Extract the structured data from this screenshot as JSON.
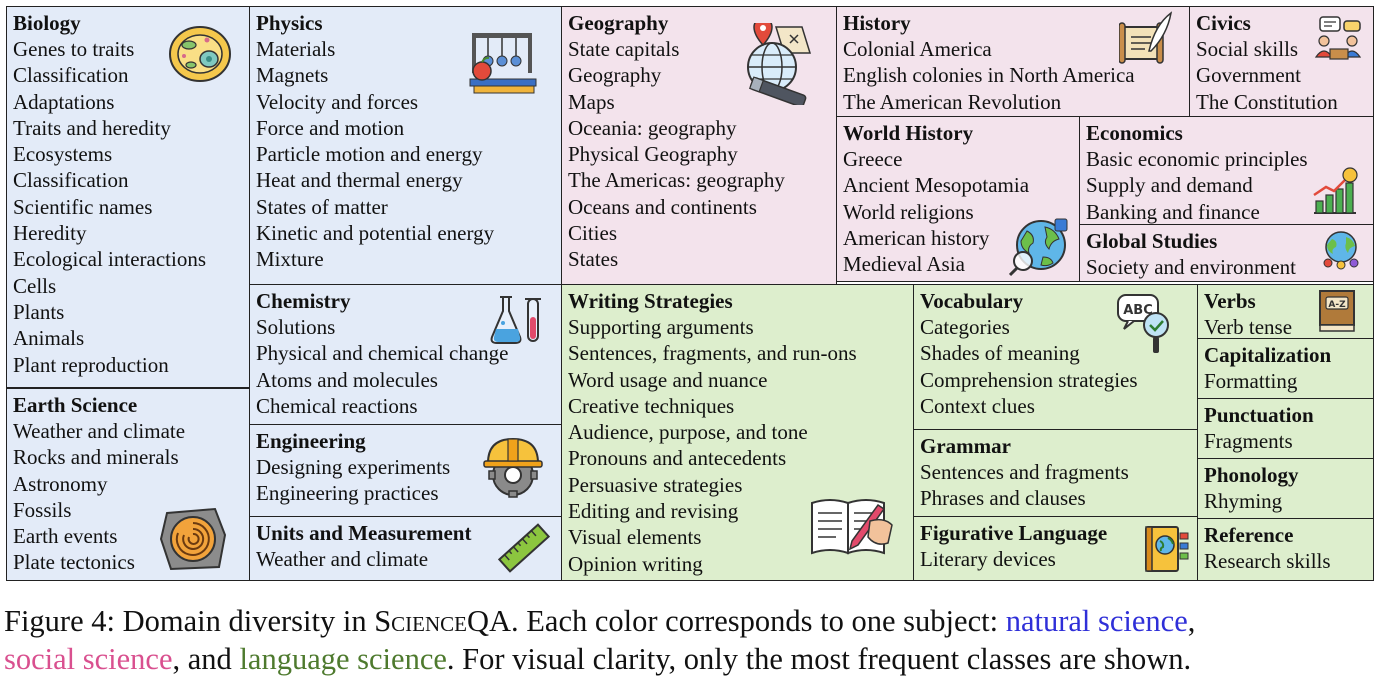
{
  "panels": {
    "biology": {
      "title": "Biology",
      "items": [
        "Genes to traits",
        "Classification",
        "Adaptations",
        "Traits and heredity",
        "Ecosystems",
        "Classification",
        "Scientific names",
        "Heredity",
        "Ecological interactions",
        "Cells",
        "Plants",
        "Animals",
        "Plant reproduction"
      ],
      "icon": "cell-icon"
    },
    "earth": {
      "title": "Earth Science",
      "items": [
        "Weather and climate",
        "Rocks and minerals",
        "Astronomy",
        "Fossils",
        "Earth events",
        "Plate tectonics"
      ],
      "icon": "fossil-icon"
    },
    "physics": {
      "title": "Physics",
      "items": [
        "Materials",
        "Magnets",
        "Velocity and forces",
        "Force and motion",
        "Particle motion and energy",
        "Heat and thermal energy",
        "States of matter",
        "Kinetic and potential energy",
        "Mixture"
      ],
      "icon": "newton-cradle-icon"
    },
    "chemistry": {
      "title": "Chemistry",
      "items": [
        "Solutions",
        "Physical and chemical change",
        "Atoms and molecules",
        "Chemical reactions"
      ],
      "icon": "flask-icon"
    },
    "engineering": {
      "title": "Engineering",
      "items": [
        "Designing experiments",
        "Engineering practices"
      ],
      "icon": "hardhat-gear-icon"
    },
    "units": {
      "title": "Units and Measurement",
      "items": [
        "Weather and climate"
      ],
      "icon": "ruler-icon"
    },
    "geography": {
      "title": "Geography",
      "items": [
        "State capitals",
        "Geography",
        "Maps",
        "Oceania: geography",
        "Physical Geography",
        "The Americas: geography",
        "Oceans and continents",
        "Cities",
        "States"
      ],
      "icon": "globe-telescope-icon"
    },
    "history": {
      "title": "History",
      "items": [
        "Colonial America",
        "English colonies in North America",
        "The American Revolution"
      ],
      "icon": "scroll-quill-icon"
    },
    "civics": {
      "title": "Civics",
      "items": [
        "Social skills",
        "Government",
        "The Constitution"
      ],
      "icon": "discussion-icon"
    },
    "world": {
      "title": "World History",
      "items": [
        "Greece",
        "Ancient Mesopotamia",
        "World religions",
        "American history",
        "Medieval Asia"
      ],
      "icon": "globe-search-icon"
    },
    "economics": {
      "title": "Economics",
      "items": [
        "Basic economic principles",
        "Supply and demand",
        "Banking and finance"
      ],
      "icon": "growth-chart-icon"
    },
    "global": {
      "title": "Global Studies",
      "items": [
        "Society and environment"
      ],
      "icon": "world-people-icon"
    },
    "writing": {
      "title": "Writing Strategies",
      "items": [
        "Supporting arguments",
        "Sentences, fragments, and run-ons",
        "Word usage and nuance",
        "Creative techniques",
        "Audience, purpose, and tone",
        "Pronouns and antecedents",
        "Persuasive strategies",
        "Editing and revising",
        "Visual elements",
        "Opinion writing"
      ],
      "icon": "writing-book-icon"
    },
    "vocab": {
      "title": "Vocabulary",
      "items": [
        "Categories",
        "Shades of meaning",
        "Comprehension strategies",
        "Context clues"
      ],
      "icon": "abc-magnifier-icon",
      "icon_text": "ABC"
    },
    "grammar": {
      "title": "Grammar",
      "items": [
        "Sentences and fragments",
        "Phrases and clauses"
      ]
    },
    "figurative": {
      "title": "Figurative Language",
      "items": [
        "Literary devices"
      ],
      "icon": "atlas-book-icon"
    },
    "verbs": {
      "title": "Verbs",
      "items": [
        "Verb tense"
      ],
      "icon": "dictionary-icon",
      "icon_text": "A-Z"
    },
    "capitalization": {
      "title": "Capitalization",
      "items": [
        "Formatting"
      ]
    },
    "punctuation": {
      "title": "Punctuation",
      "items": [
        "Fragments"
      ]
    },
    "phonology": {
      "title": "Phonology",
      "items": [
        "Rhyming"
      ]
    },
    "reference": {
      "title": "Reference",
      "items": [
        "Research skills"
      ]
    }
  },
  "caption": {
    "prefix": "Figure 4: Domain diversity in ",
    "dataset": "ScienceQA",
    "middle": ". Each color corresponds to one subject: ",
    "natural": "natural science",
    "comma": ",",
    "social": "social science",
    "and": ", and ",
    "language": "language science",
    "suffix": ". For visual clarity, only the most frequent classes are shown."
  },
  "colors": {
    "natural_bg": "#e3ebf8",
    "social_bg": "#f3e3ec",
    "language_bg": "#ddeecd",
    "natural_text": "#2f2fd8",
    "social_text": "#d9508f",
    "language_text": "#4e7a2e"
  }
}
